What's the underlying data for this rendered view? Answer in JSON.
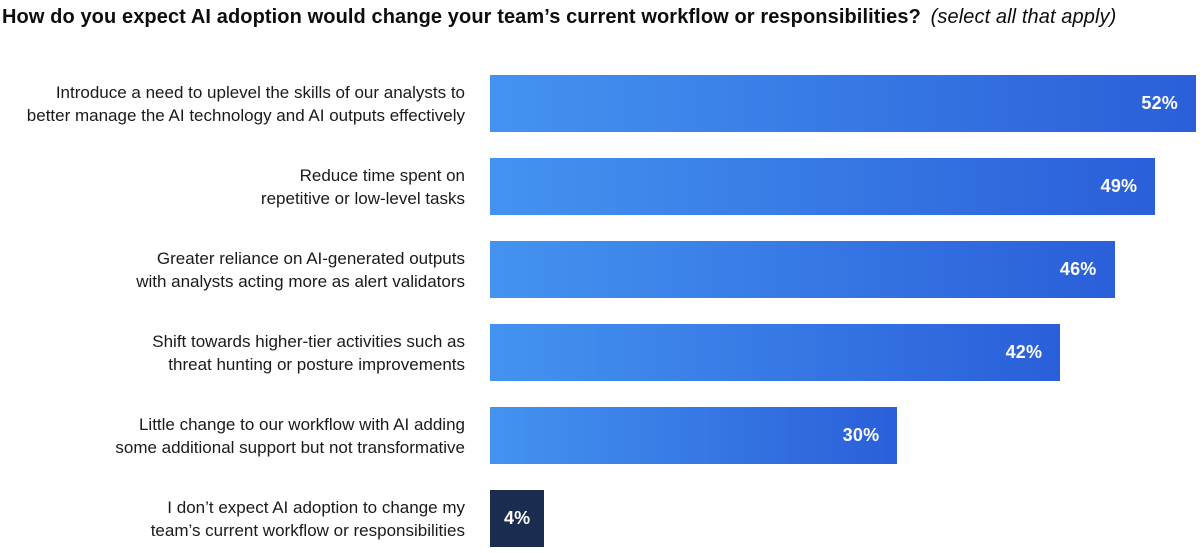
{
  "title": {
    "main": "How do you expect AI adoption would change your team’s current workflow or responsibilities?",
    "suffix": "(select all that apply)"
  },
  "chart_data": {
    "type": "bar",
    "orientation": "horizontal",
    "title": "How do you expect AI adoption would change your team’s current workflow or responsibilities? (select all that apply)",
    "unit": "%",
    "axis_max": 52,
    "grid": false,
    "legend": false,
    "categories": [
      "Introduce a need to uplevel the skills of our analysts to\nbetter manage the AI technology and AI outputs effectively",
      "Reduce time spent on\nrepetitive or low-level tasks",
      "Greater reliance on AI-generated outputs\nwith analysts acting more as alert validators",
      "Shift towards higher-tier activities such as\nthreat hunting or posture improvements",
      "Little change to our workflow with AI adding\nsome additional support but not transformative",
      "I don’t expect AI adoption to change my\nteam’s current workflow or responsibilities"
    ],
    "values": [
      52,
      49,
      46,
      42,
      30,
      4
    ],
    "value_labels": [
      "52%",
      "49%",
      "46%",
      "42%",
      "30%",
      "4%"
    ],
    "bar_styles": [
      "gradient",
      "gradient",
      "gradient",
      "gradient",
      "gradient",
      "dark"
    ],
    "colors": {
      "bar_gradient_start": "#4493F0",
      "bar_gradient_end": "#2A5FD9",
      "dark_bar": "#1B2D4F",
      "value_text": "#FFFFFF",
      "label_text": "#1A1A1A",
      "title_text": "#0D0D0D"
    }
  }
}
